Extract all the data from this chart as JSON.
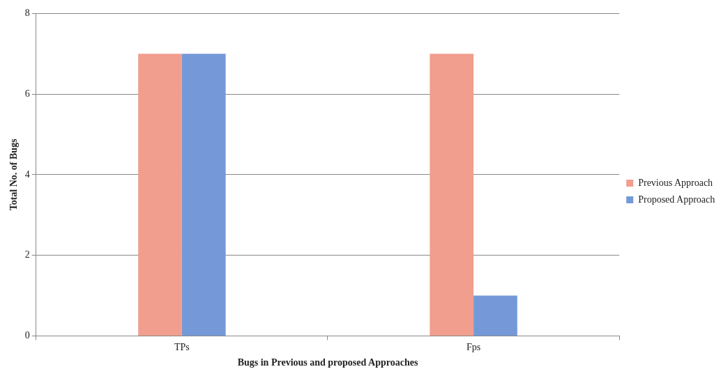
{
  "chart_data": {
    "type": "bar",
    "xlabel": "Bugs in Previous and proposed Approaches",
    "ylabel": "Total No. of Bugs",
    "categories": [
      "TPs",
      "Fps"
    ],
    "series": [
      {
        "name": "Previous Approach",
        "color": "#f19e8e",
        "values": [
          7,
          7
        ]
      },
      {
        "name": "Proposed Approach",
        "color": "#7599d8",
        "values": [
          7,
          1
        ]
      }
    ],
    "ylim": [
      0,
      8
    ],
    "yticks": [
      0,
      2,
      4,
      6,
      8
    ],
    "grid": "y",
    "legend": "right"
  }
}
